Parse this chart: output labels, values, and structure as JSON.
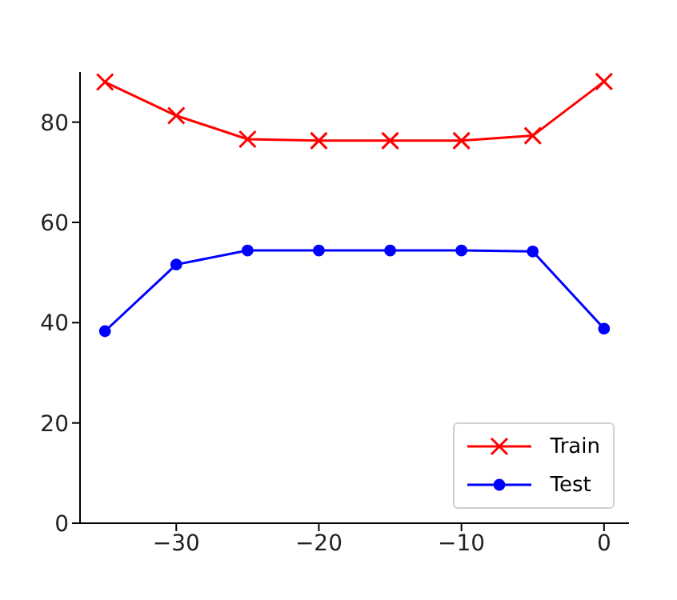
{
  "chart_data": {
    "type": "line",
    "x": [
      -35,
      -30,
      -25,
      -20,
      -15,
      -10,
      -5,
      0
    ],
    "series": [
      {
        "name": "Train",
        "color": "#ff0000",
        "marker": "cross",
        "values": [
          88.0,
          81.3,
          76.6,
          76.3,
          76.3,
          76.3,
          77.3,
          88.1
        ]
      },
      {
        "name": "Test",
        "color": "#0000ff",
        "marker": "circle",
        "values": [
          38.3,
          51.6,
          54.4,
          54.4,
          54.4,
          54.4,
          54.2,
          38.8
        ]
      }
    ],
    "xlim": [
      -36.75,
      1.75
    ],
    "xticks": [
      {
        "value": -30,
        "label": "−30"
      },
      {
        "value": -20,
        "label": "−20"
      },
      {
        "value": -10,
        "label": "−10"
      },
      0
    ],
    "ylim": [
      0,
      90
    ],
    "yticks": [
      0,
      20,
      40,
      60,
      80
    ],
    "grid": false,
    "legend": "bottom right",
    "line_style": "solid"
  }
}
